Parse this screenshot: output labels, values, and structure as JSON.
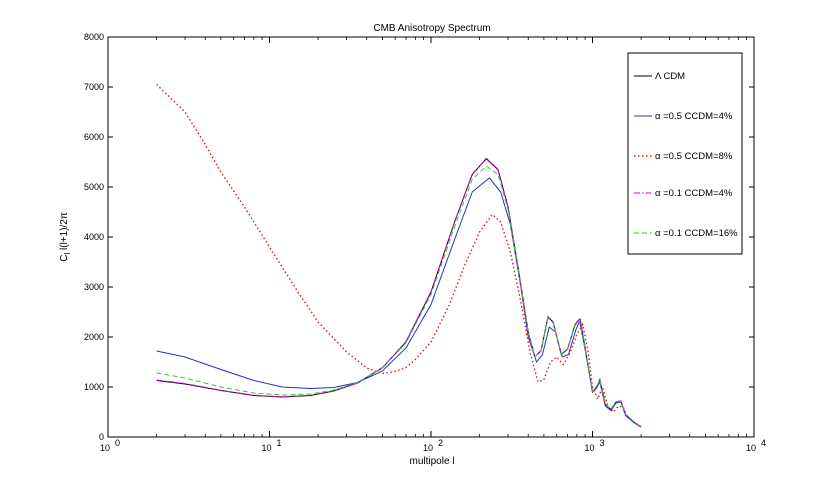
{
  "chart_data": {
    "type": "line",
    "title": "CMB Anisotropy Spectrum",
    "xlabel": "multipole l",
    "ylabel": "C_l l(l+1)/2π",
    "x_scale": "log",
    "xlim": [
      1,
      10000
    ],
    "ylim": [
      0,
      8000
    ],
    "x_ticks": [
      1,
      10,
      100,
      1000,
      10000
    ],
    "x_tick_labels": [
      {
        "base": "10",
        "exp": "0"
      },
      {
        "base": "10",
        "exp": "1"
      },
      {
        "base": "10",
        "exp": "2"
      },
      {
        "base": "10",
        "exp": "3"
      },
      {
        "base": "10",
        "exp": "4"
      }
    ],
    "y_ticks": [
      0,
      1000,
      2000,
      3000,
      4000,
      5000,
      6000,
      7000,
      8000
    ],
    "y_tick_labels": [
      "0",
      "1000",
      "2000",
      "3000",
      "4000",
      "5000",
      "6000",
      "7000",
      "8000"
    ],
    "grid": false,
    "legend_position": "top-right",
    "series": [
      {
        "name": "Λ CDM",
        "color": "#000000",
        "style": "solid",
        "points": [
          [
            2,
            1130
          ],
          [
            3,
            1060
          ],
          [
            5,
            930
          ],
          [
            8,
            830
          ],
          [
            12,
            800
          ],
          [
            18,
            830
          ],
          [
            25,
            920
          ],
          [
            35,
            1080
          ],
          [
            50,
            1380
          ],
          [
            70,
            1900
          ],
          [
            100,
            2900
          ],
          [
            140,
            4300
          ],
          [
            180,
            5250
          ],
          [
            220,
            5570
          ],
          [
            260,
            5350
          ],
          [
            300,
            4600
          ],
          [
            350,
            3300
          ],
          [
            400,
            2100
          ],
          [
            440,
            1600
          ],
          [
            480,
            1720
          ],
          [
            530,
            2400
          ],
          [
            570,
            2300
          ],
          [
            640,
            1650
          ],
          [
            700,
            1750
          ],
          [
            780,
            2250
          ],
          [
            830,
            2350
          ],
          [
            900,
            1750
          ],
          [
            1000,
            900
          ],
          [
            1060,
            1000
          ],
          [
            1110,
            1150
          ],
          [
            1200,
            650
          ],
          [
            1300,
            550
          ],
          [
            1400,
            700
          ],
          [
            1500,
            720
          ],
          [
            1600,
            450
          ],
          [
            1800,
            300
          ],
          [
            2000,
            200
          ]
        ]
      },
      {
        "name": "α =0.5 CCDM=4%",
        "color": "#2233cc",
        "style": "solid",
        "points": [
          [
            2,
            1720
          ],
          [
            3,
            1600
          ],
          [
            5,
            1350
          ],
          [
            8,
            1130
          ],
          [
            12,
            1000
          ],
          [
            18,
            970
          ],
          [
            25,
            990
          ],
          [
            35,
            1090
          ],
          [
            50,
            1320
          ],
          [
            70,
            1780
          ],
          [
            100,
            2650
          ],
          [
            140,
            3950
          ],
          [
            180,
            4900
          ],
          [
            230,
            5180
          ],
          [
            270,
            4900
          ],
          [
            310,
            4250
          ],
          [
            360,
            3000
          ],
          [
            400,
            2000
          ],
          [
            450,
            1500
          ],
          [
            490,
            1650
          ],
          [
            540,
            2200
          ],
          [
            590,
            2100
          ],
          [
            650,
            1600
          ],
          [
            710,
            1650
          ],
          [
            790,
            2150
          ],
          [
            840,
            2350
          ],
          [
            900,
            1800
          ],
          [
            1000,
            900
          ],
          [
            1060,
            980
          ],
          [
            1110,
            1100
          ],
          [
            1200,
            620
          ],
          [
            1300,
            530
          ],
          [
            1400,
            680
          ],
          [
            1500,
            700
          ],
          [
            1600,
            430
          ],
          [
            1800,
            290
          ],
          [
            2000,
            200
          ]
        ]
      },
      {
        "name": "α =0.5 CCDM=8%",
        "color": "#ee1111",
        "style": "dotted",
        "points": [
          [
            2,
            7050
          ],
          [
            3,
            6500
          ],
          [
            4,
            5850
          ],
          [
            5,
            5300
          ],
          [
            7,
            4600
          ],
          [
            10,
            3800
          ],
          [
            15,
            2900
          ],
          [
            20,
            2300
          ],
          [
            30,
            1700
          ],
          [
            40,
            1380
          ],
          [
            50,
            1270
          ],
          [
            60,
            1310
          ],
          [
            70,
            1390
          ],
          [
            80,
            1550
          ],
          [
            100,
            1900
          ],
          [
            130,
            2650
          ],
          [
            160,
            3400
          ],
          [
            200,
            4100
          ],
          [
            240,
            4450
          ],
          [
            270,
            4300
          ],
          [
            310,
            3700
          ],
          [
            360,
            2700
          ],
          [
            410,
            1700
          ],
          [
            460,
            1100
          ],
          [
            500,
            1150
          ],
          [
            550,
            1500
          ],
          [
            600,
            1600
          ],
          [
            660,
            1450
          ],
          [
            730,
            1700
          ],
          [
            800,
            2050
          ],
          [
            870,
            2250
          ],
          [
            940,
            1700
          ],
          [
            1000,
            1000
          ],
          [
            1080,
            760
          ],
          [
            1150,
            1000
          ],
          [
            1250,
            600
          ],
          [
            1350,
            500
          ],
          [
            1450,
            620
          ],
          [
            1550,
            600
          ],
          [
            1650,
            400
          ],
          [
            1800,
            290
          ],
          [
            2000,
            190
          ]
        ]
      },
      {
        "name": "α =0.1 CCDM=4%",
        "color": "#dd00dd",
        "style": "dashdot",
        "points": [
          [
            2,
            1140
          ],
          [
            3,
            1070
          ],
          [
            5,
            935
          ],
          [
            8,
            835
          ],
          [
            12,
            805
          ],
          [
            18,
            835
          ],
          [
            25,
            925
          ],
          [
            35,
            1085
          ],
          [
            50,
            1390
          ],
          [
            70,
            1910
          ],
          [
            100,
            2910
          ],
          [
            140,
            4310
          ],
          [
            180,
            5260
          ],
          [
            220,
            5560
          ],
          [
            260,
            5340
          ],
          [
            300,
            4590
          ],
          [
            350,
            3290
          ],
          [
            400,
            2090
          ],
          [
            440,
            1610
          ],
          [
            480,
            1730
          ],
          [
            530,
            2410
          ],
          [
            570,
            2310
          ],
          [
            640,
            1660
          ],
          [
            700,
            1760
          ],
          [
            780,
            2260
          ],
          [
            830,
            2360
          ],
          [
            900,
            1760
          ],
          [
            1000,
            910
          ],
          [
            1060,
            1010
          ],
          [
            1110,
            1150
          ],
          [
            1200,
            660
          ],
          [
            1300,
            560
          ],
          [
            1400,
            710
          ],
          [
            1500,
            720
          ],
          [
            1600,
            460
          ],
          [
            1800,
            310
          ],
          [
            2000,
            210
          ]
        ]
      },
      {
        "name": "α =0.1 CCDM=16%",
        "color": "#33cc33",
        "style": "dashed",
        "points": [
          [
            2,
            1280
          ],
          [
            3,
            1180
          ],
          [
            5,
            1000
          ],
          [
            8,
            880
          ],
          [
            12,
            840
          ],
          [
            18,
            860
          ],
          [
            25,
            940
          ],
          [
            35,
            1090
          ],
          [
            50,
            1380
          ],
          [
            70,
            1880
          ],
          [
            100,
            2850
          ],
          [
            140,
            4200
          ],
          [
            180,
            5150
          ],
          [
            220,
            5420
          ],
          [
            260,
            5250
          ],
          [
            300,
            4550
          ],
          [
            350,
            3280
          ],
          [
            400,
            2080
          ],
          [
            440,
            1600
          ],
          [
            480,
            1720
          ],
          [
            530,
            2380
          ],
          [
            570,
            2280
          ],
          [
            640,
            1660
          ],
          [
            700,
            1760
          ],
          [
            780,
            2230
          ],
          [
            830,
            2330
          ],
          [
            900,
            1760
          ],
          [
            1000,
            920
          ],
          [
            1060,
            1010
          ],
          [
            1110,
            1140
          ],
          [
            1200,
            660
          ],
          [
            1300,
            560
          ],
          [
            1400,
            700
          ],
          [
            1500,
            710
          ],
          [
            1600,
            460
          ],
          [
            1800,
            310
          ],
          [
            2000,
            210
          ]
        ]
      }
    ]
  }
}
